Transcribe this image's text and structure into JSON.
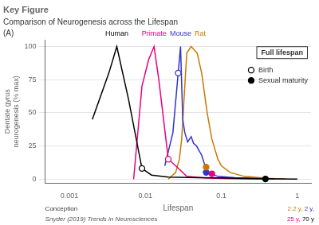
{
  "chart_data": {
    "type": "line",
    "title": "Key Figure",
    "subtitle": "Comparison of Neurogenesis across the Lifespan",
    "xlabel": "Lifespan",
    "ylabel": "Dentate gyrus\nneurogenesis (% max)",
    "log": "x",
    "xlim": [
      0.000478630092322638,
      1.51356124843621
    ],
    "xticks": [
      0.001,
      0.01,
      0.1,
      1
    ],
    "ylim": [
      -3,
      105
    ],
    "yticks": [
      0,
      25,
      50,
      75,
      100
    ],
    "grid": true,
    "legend": "right",
    "series": [
      {
        "name": "Human",
        "color": "black",
        "x": [
          0.002,
          0.0033,
          0.0042,
          0.006,
          0.009,
          0.012,
          0.02,
          0.05,
          0.1,
          0.3,
          0.5,
          1.0
        ],
        "values": [
          45,
          80,
          100,
          60,
          8,
          3,
          1.5,
          1.0,
          0.8,
          0.3,
          0.1,
          0
        ]
      },
      {
        "name": "Primate",
        "color": "#e6007e",
        "x": [
          0.007,
          0.009,
          0.011,
          0.013,
          0.015,
          0.02,
          0.025,
          0.035,
          0.06,
          0.1,
          0.2,
          0.5
        ],
        "values": [
          0,
          70,
          90,
          100,
          75,
          15,
          10,
          2,
          0.8,
          0.4,
          0.1,
          0
        ]
      },
      {
        "name": "Mouse",
        "color": "#3333cc",
        "x": [
          0.018,
          0.023,
          0.027,
          0.029,
          0.031,
          0.033,
          0.036,
          0.04,
          0.043,
          0.047,
          0.055,
          0.065,
          0.09,
          0.15,
          0.3,
          0.5
        ],
        "values": [
          10,
          35,
          80,
          100,
          45,
          35,
          28,
          32,
          27,
          25,
          18,
          5,
          2,
          1,
          0.5,
          0
        ]
      },
      {
        "name": "Rat",
        "color": "#cc7700",
        "x": [
          0.02,
          0.025,
          0.028,
          0.03,
          0.035,
          0.04,
          0.048,
          0.055,
          0.065,
          0.075,
          0.09,
          0.1,
          0.13,
          0.2,
          0.4,
          0.7
        ],
        "values": [
          0,
          5,
          15,
          30,
          95,
          100,
          95,
          80,
          50,
          30,
          15,
          10,
          5,
          2,
          0.5,
          0
        ]
      },
      {
        "name": "Birth",
        "type": "scatter",
        "marker": "open_circle",
        "x": [
          0.009,
          0.02,
          0.027
        ],
        "values": [
          8,
          15,
          80
        ],
        "colors": [
          "black",
          "#e6007e",
          "#3333cc"
        ]
      },
      {
        "name": "Sexual maturity",
        "type": "scatter",
        "marker": "filled_circle",
        "x": [
          0.38,
          0.075,
          0.063,
          0.063
        ],
        "values": [
          0.1,
          4,
          5,
          9
        ],
        "colors": [
          "black",
          "#e6007e",
          "#3333cc",
          "#cc7700"
        ]
      }
    ],
    "annotations": [
      {
        "text": "(A)"
      },
      {
        "text": "Full lifespan"
      },
      {
        "text": "Conception"
      },
      {
        "text": "2.2 y,",
        "color": "#cc7700"
      },
      {
        "text": "2 y,",
        "color": "#3333cc"
      },
      {
        "text": "25 y,",
        "color": "#e6007e"
      },
      {
        "text": "70 y",
        "color": "black"
      },
      {
        "text": "Snyder (2019) Trends in Neurosciences"
      }
    ]
  }
}
